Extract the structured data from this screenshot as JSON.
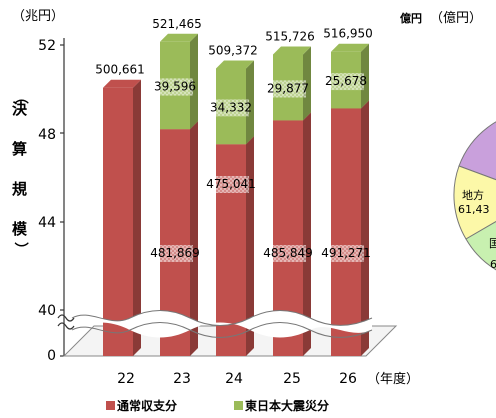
{
  "chart_data": {
    "type": "bar",
    "stacked": true,
    "categories": [
      "22",
      "23",
      "24",
      "25",
      "26"
    ],
    "series": [
      {
        "name": "通常収支分",
        "values": [
          500661,
          481869,
          475041,
          485849,
          491271
        ],
        "color": "#c0504d"
      },
      {
        "name": "東日本大震災分",
        "values": [
          null,
          39596,
          34332,
          29877,
          25678
        ],
        "color": "#9bbb59"
      }
    ],
    "totals": [
      "500,661",
      "521,465",
      "509,372",
      "515,726",
      "516,950"
    ],
    "total_unit": "億円",
    "ylabel_unit": "（兆円）",
    "ylabel_chars": [
      "（",
      "決",
      "算",
      "規",
      "模",
      "）"
    ],
    "y_ticks": [
      "52",
      "48",
      "44",
      "40",
      "0"
    ],
    "x_unit": "（年度）",
    "axis_break": true,
    "ylim_visible": [
      40,
      52
    ],
    "legend_position": "bottom",
    "value_labels": {
      "normal": [
        "",
        "481,869",
        "475,041",
        "485,849",
        "491,271"
      ],
      "quake": [
        "",
        "39,596",
        "34,332",
        "29,877",
        "25,678"
      ]
    }
  },
  "pie_partial": {
    "unit_label": "（億円）",
    "labels": [
      "地方",
      "61,43",
      "国",
      "6"
    ],
    "colors": [
      "#c9a0dc",
      "#fcf8a8",
      "#c8f0b0"
    ]
  }
}
